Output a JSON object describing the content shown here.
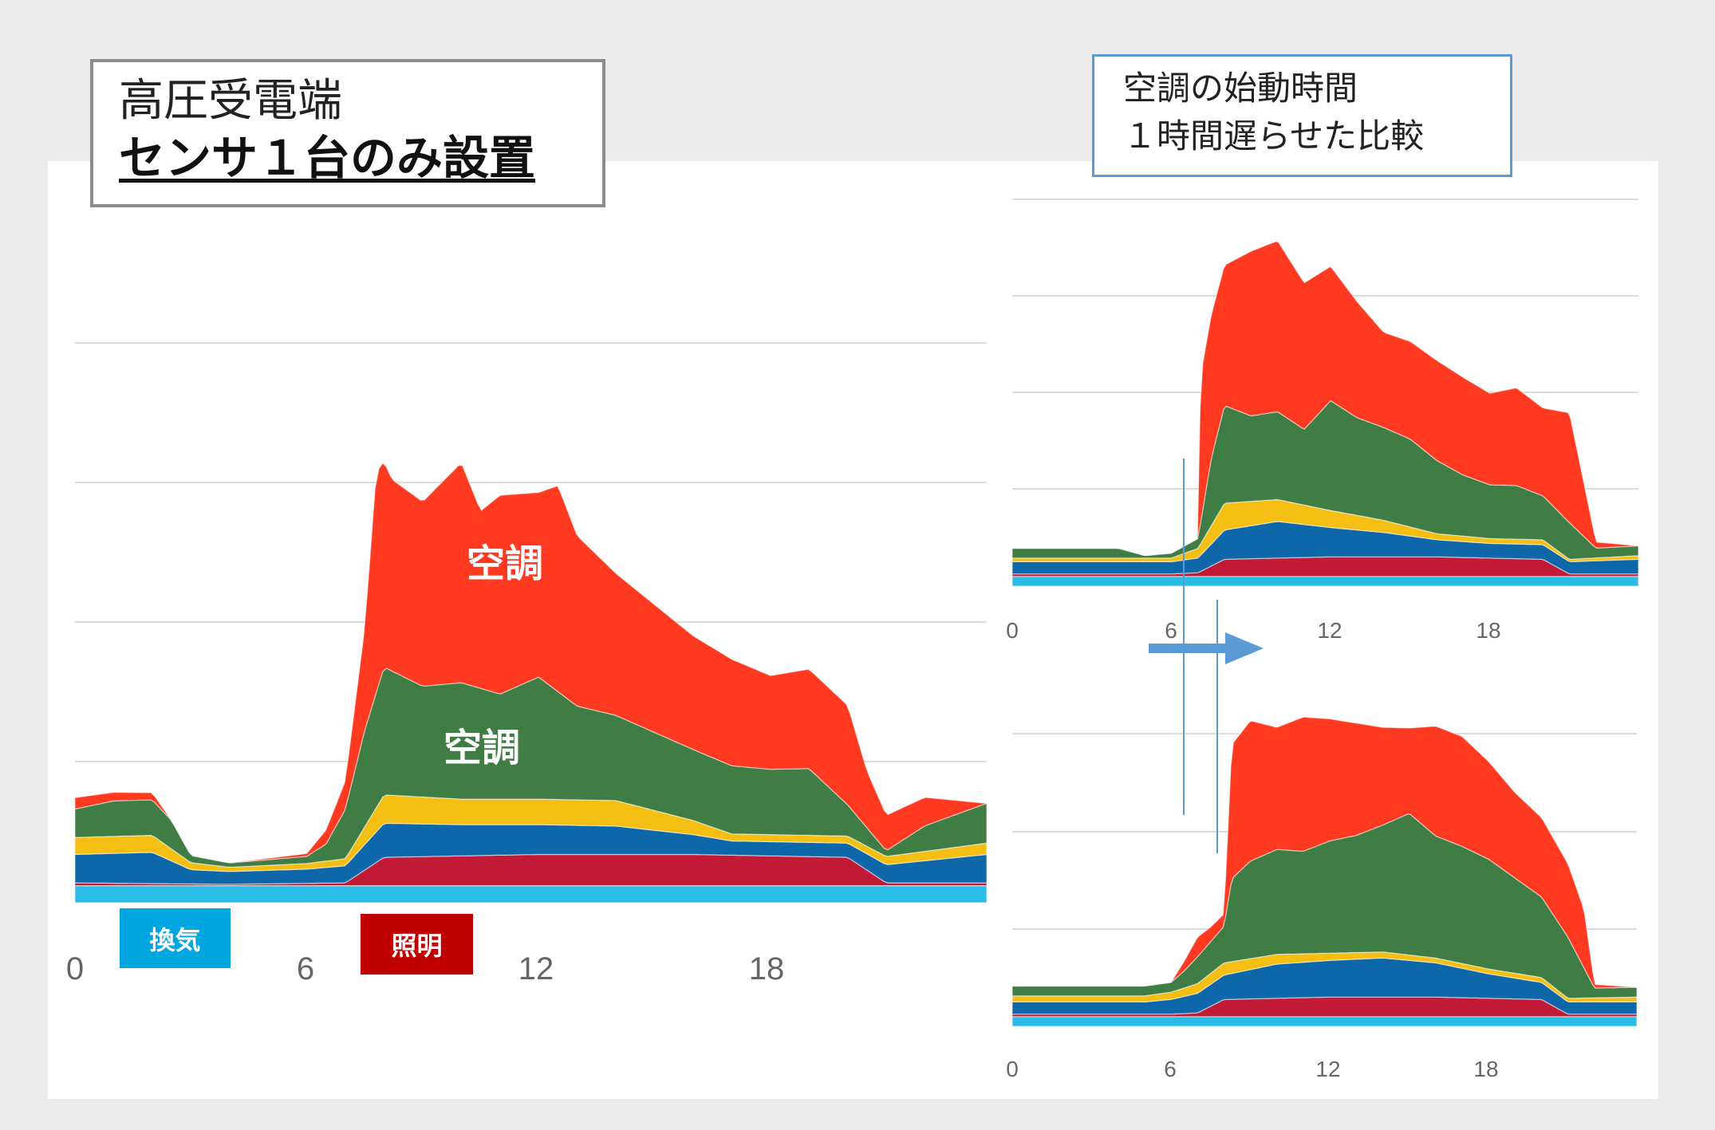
{
  "title_box": {
    "line1": "高圧受電端",
    "line2": "センサ１台のみ設置"
  },
  "note_box": {
    "text": "空調の始動時間\n１時間遅らせた比較"
  },
  "labels": {
    "ac_upper": "空調",
    "ac_lower": "空調",
    "ventilation": "換気",
    "lighting": "照明"
  },
  "colors": {
    "ventilation": "#29bde6",
    "lighting": "#c21a36",
    "other_blue": "#0d67a8",
    "other_yellow": "#f5be12",
    "ac_green": "#3f7d44",
    "ac_red": "#ff3a20",
    "grid": "#dcdcdc",
    "arrow": "#5b9bd5"
  },
  "chart_data": [
    {
      "type": "area",
      "stacked": true,
      "x_ticks": [
        "0",
        "6",
        "12",
        "18"
      ],
      "xlim": [
        0,
        23.6
      ],
      "grid": true,
      "series": [
        {
          "name": "換気",
          "color": "#29bde6",
          "x": [
            0,
            4,
            8,
            12,
            16,
            20,
            23.6
          ],
          "values": [
            12,
            12,
            12,
            12,
            12,
            12,
            12
          ]
        },
        {
          "name": "照明",
          "color": "#c21a36",
          "x": [
            0,
            4,
            7,
            8,
            12,
            16,
            20,
            21,
            23.6
          ],
          "values": [
            2,
            1,
            2,
            20,
            22,
            22,
            20,
            2,
            2
          ]
        },
        {
          "name": "",
          "color": "#0d67a8",
          "x": [
            0,
            2,
            3,
            4,
            6,
            7,
            8,
            10,
            12,
            14,
            16,
            17,
            20,
            23.6
          ],
          "values": [
            20,
            22,
            10,
            9,
            10,
            12,
            24,
            22,
            21,
            20,
            14,
            10,
            10,
            20
          ]
        },
        {
          "name": "",
          "color": "#f5be12",
          "x": [
            0,
            2,
            3,
            4,
            6,
            7,
            8,
            10,
            12,
            14,
            16,
            17,
            20,
            23.6
          ],
          "values": [
            12,
            12,
            5,
            3,
            4,
            5,
            20,
            18,
            18,
            18,
            10,
            5,
            5,
            8
          ]
        },
        {
          "name": "空調",
          "color": "#3f7d44",
          "x": [
            0,
            1,
            2,
            2.5,
            3,
            4,
            6,
            6.5,
            7,
            7.5,
            8,
            9,
            10,
            11,
            12,
            13,
            14,
            15,
            16,
            17,
            18,
            19,
            20,
            21,
            22,
            23.6
          ],
          "values": [
            20,
            25,
            25,
            20,
            5,
            3,
            5,
            12,
            35,
            68,
            90,
            78,
            82,
            74,
            86,
            66,
            60,
            55,
            50,
            48,
            46,
            47,
            22,
            4,
            18,
            28
          ]
        },
        {
          "name": "空調",
          "color": "#ff3a20",
          "x": [
            0,
            1,
            2,
            2.5,
            3,
            4,
            6,
            6.5,
            7,
            7.5,
            7.8,
            8.2,
            9,
            10,
            10.5,
            11,
            12,
            12.5,
            13,
            14,
            15,
            16,
            17,
            18,
            19,
            20,
            20.5,
            21,
            22,
            23.6
          ],
          "values": [
            8,
            6,
            5,
            0,
            0,
            0,
            2,
            10,
            20,
            72,
            155,
            135,
            130,
            155,
            125,
            140,
            130,
            145,
            120,
            100,
            90,
            80,
            75,
            66,
            70,
            70,
            40,
            25,
            20,
            0
          ]
        }
      ]
    },
    {
      "type": "area",
      "stacked": true,
      "x_ticks": [
        "0",
        "6",
        "12",
        "18"
      ],
      "xlim": [
        0,
        23.6
      ],
      "grid": true,
      "series": [
        {
          "name": "換気",
          "color": "#29bde6",
          "x": [
            0,
            8,
            16,
            23.6
          ],
          "values": [
            8,
            8,
            8,
            8
          ]
        },
        {
          "name": "照明",
          "color": "#c21a36",
          "x": [
            0,
            6,
            7,
            8,
            12,
            16,
            20,
            21,
            23.6
          ],
          "values": [
            2,
            2,
            3,
            14,
            16,
            16,
            14,
            2,
            2
          ]
        },
        {
          "name": "",
          "color": "#0d67a8",
          "x": [
            0,
            6,
            7,
            8,
            10,
            12,
            14,
            16,
            18,
            20,
            21,
            23.6
          ],
          "values": [
            10,
            10,
            12,
            24,
            30,
            24,
            20,
            14,
            12,
            12,
            10,
            12
          ]
        },
        {
          "name": "",
          "color": "#f5be12",
          "x": [
            0,
            6,
            7,
            8,
            10,
            12,
            14,
            16,
            18,
            20,
            21,
            23.6
          ],
          "values": [
            3,
            3,
            8,
            22,
            18,
            14,
            10,
            5,
            4,
            4,
            2,
            3
          ]
        },
        {
          "name": "",
          "color": "#3f7d44",
          "x": [
            0,
            4,
            5,
            6,
            6.5,
            7,
            7.5,
            8,
            9,
            10,
            11,
            12,
            13,
            14,
            15,
            16,
            17,
            18,
            19,
            20,
            21,
            22,
            23.6
          ],
          "values": [
            8,
            8,
            2,
            4,
            6,
            8,
            55,
            80,
            70,
            72,
            62,
            90,
            80,
            76,
            72,
            60,
            50,
            44,
            44,
            36,
            30,
            8,
            8
          ]
        },
        {
          "name": "",
          "color": "#ff3a20",
          "x": [
            0,
            6,
            7,
            7.1,
            8,
            9,
            10,
            11,
            12,
            13,
            14,
            15,
            16,
            17,
            18,
            19,
            20,
            21,
            22,
            23.6
          ],
          "values": [
            0,
            0,
            0,
            120,
            115,
            135,
            140,
            120,
            110,
            95,
            78,
            80,
            82,
            80,
            75,
            80,
            72,
            90,
            5,
            0
          ]
        }
      ]
    },
    {
      "type": "area",
      "stacked": true,
      "x_ticks": [
        "0",
        "6",
        "12",
        "18"
      ],
      "xlim": [
        0,
        23.6
      ],
      "grid": true,
      "series": [
        {
          "name": "換気",
          "color": "#29bde6",
          "x": [
            0,
            8,
            16,
            23.6
          ],
          "values": [
            8,
            8,
            8,
            8
          ]
        },
        {
          "name": "照明",
          "color": "#c21a36",
          "x": [
            0,
            6,
            7,
            8,
            12,
            16,
            20,
            21,
            23.6
          ],
          "values": [
            2,
            2,
            3,
            14,
            16,
            16,
            14,
            2,
            2
          ]
        },
        {
          "name": "",
          "color": "#0d67a8",
          "x": [
            0,
            5,
            6,
            7,
            8,
            10,
            12,
            14,
            16,
            18,
            20,
            21,
            23.6
          ],
          "values": [
            10,
            10,
            12,
            16,
            20,
            28,
            30,
            32,
            28,
            20,
            14,
            10,
            10
          ]
        },
        {
          "name": "",
          "color": "#f5be12",
          "x": [
            0,
            5,
            6,
            7,
            8,
            10,
            12,
            14,
            16,
            18,
            20,
            21,
            23.6
          ],
          "values": [
            5,
            5,
            6,
            8,
            10,
            8,
            6,
            5,
            4,
            4,
            4,
            3,
            4
          ]
        },
        {
          "name": "",
          "color": "#3f7d44",
          "x": [
            0,
            5,
            6,
            6.5,
            7,
            7.5,
            8,
            8.3,
            9,
            10,
            11,
            12,
            13,
            14,
            15,
            16,
            17,
            18,
            19,
            20,
            21,
            22,
            23.6
          ],
          "values": [
            8,
            8,
            8,
            14,
            22,
            26,
            30,
            68,
            80,
            86,
            84,
            92,
            96,
            104,
            116,
            100,
            96,
            90,
            78,
            66,
            50,
            8,
            8
          ]
        },
        {
          "name": "",
          "color": "#ff3a20",
          "x": [
            0,
            6,
            6.5,
            7,
            7.5,
            8,
            8.3,
            9,
            10,
            11,
            12,
            13,
            14,
            15,
            16,
            17,
            18,
            19,
            20,
            21,
            21.6,
            22,
            23.6
          ],
          "values": [
            0,
            0,
            8,
            16,
            12,
            10,
            110,
            115,
            100,
            110,
            100,
            92,
            80,
            70,
            90,
            90,
            80,
            70,
            65,
            60,
            48,
            3,
            0
          ]
        }
      ]
    }
  ]
}
